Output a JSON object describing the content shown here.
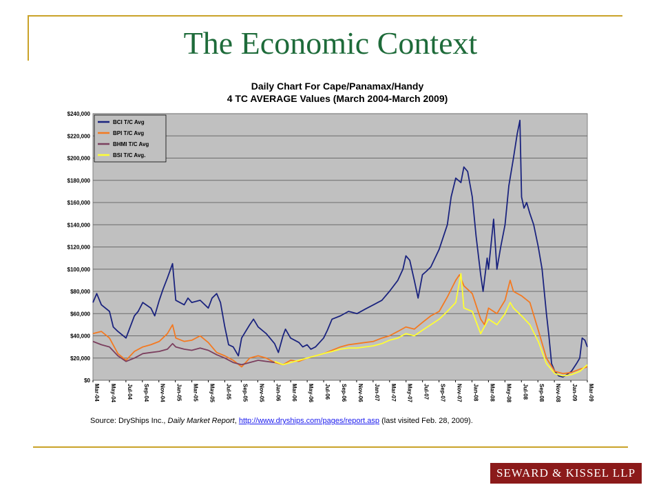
{
  "slide": {
    "title": "The Economic Context",
    "source_prefix": "Source: DryShips Inc., ",
    "source_italic": "Daily Market Report",
    "source_sep": ", ",
    "source_link": "http://www.dryships.com/pages/report.asp",
    "source_suffix": " (last visited Feb. 28, 2009).",
    "logo_text": "SEWARD & KISSEL LLP",
    "colors": {
      "title": "#1e6b3a",
      "rule": "#c9a227",
      "logo_bg": "#8b1a1a"
    }
  },
  "chart_data": {
    "type": "line",
    "title": "Daily Chart For Cape/Panamax/Handy",
    "subtitle": "4 TC AVERAGE Values (March 2004-March 2009)",
    "xlabel": "",
    "ylabel": "",
    "ylim": [
      0,
      240000
    ],
    "yticks": [
      {
        "value": 0,
        "label": "$0"
      },
      {
        "value": 20000,
        "label": "$20,000"
      },
      {
        "value": 40000,
        "label": "$40,000"
      },
      {
        "value": 60000,
        "label": "$60,000"
      },
      {
        "value": 80000,
        "label": "$80,000"
      },
      {
        "value": 100000,
        "label": "$100,000"
      },
      {
        "value": 120000,
        "label": "$120,000"
      },
      {
        "value": 140000,
        "label": "$140,000"
      },
      {
        "value": 160000,
        "label": "$160,000"
      },
      {
        "value": 180000,
        "label": "$180,000"
      },
      {
        "value": 200000,
        "label": "$200,000"
      },
      {
        "value": 220000,
        "label": "$220,000"
      },
      {
        "value": 240000,
        "label": "$240,000"
      }
    ],
    "xlim": [
      "2004-03",
      "2009-03"
    ],
    "xticks": [
      "Mar-04",
      "May-04",
      "Jul-04",
      "Sep-04",
      "Nov-04",
      "Jan-05",
      "Mar-05",
      "May-05",
      "Jul-05",
      "Sep-05",
      "Nov-05",
      "Jan-06",
      "Mar-06",
      "May-06",
      "Jul-06",
      "Sep-06",
      "Nov-06",
      "Jan-07",
      "Mar-07",
      "May-07",
      "Jul-07",
      "Sep-07",
      "Nov-07",
      "Jan-08",
      "Mar-08",
      "May-08",
      "Jul-08",
      "Sep-08",
      "Nov-08",
      "Jan-09",
      "Mar-09"
    ],
    "grid": true,
    "legend_position": "top-left",
    "background": "#c0c0c0",
    "series": [
      {
        "name": "BCI T/C Avg",
        "color": "#1a237e",
        "points": [
          [
            "2004-03",
            70000
          ],
          [
            "2004-03-15",
            78000
          ],
          [
            "2004-04",
            68000
          ],
          [
            "2004-05",
            62000
          ],
          [
            "2004-05-15",
            48000
          ],
          [
            "2004-06",
            44000
          ],
          [
            "2004-07",
            38000
          ],
          [
            "2004-08",
            58000
          ],
          [
            "2004-08-15",
            62000
          ],
          [
            "2004-09",
            70000
          ],
          [
            "2004-10",
            65000
          ],
          [
            "2004-10-15",
            58000
          ],
          [
            "2004-11",
            72000
          ],
          [
            "2004-11-15",
            82000
          ],
          [
            "2004-12",
            92000
          ],
          [
            "2004-12-20",
            105000
          ],
          [
            "2005-01",
            72000
          ],
          [
            "2005-02",
            68000
          ],
          [
            "2005-02-15",
            74000
          ],
          [
            "2005-03",
            70000
          ],
          [
            "2005-04",
            72000
          ],
          [
            "2005-05",
            65000
          ],
          [
            "2005-05-15",
            74000
          ],
          [
            "2005-06",
            78000
          ],
          [
            "2005-06-15",
            70000
          ],
          [
            "2005-07",
            48000
          ],
          [
            "2005-07-15",
            32000
          ],
          [
            "2005-08",
            30000
          ],
          [
            "2005-08-20",
            22000
          ],
          [
            "2005-09",
            38000
          ],
          [
            "2005-10",
            50000
          ],
          [
            "2005-10-15",
            55000
          ],
          [
            "2005-11",
            48000
          ],
          [
            "2005-12",
            42000
          ],
          [
            "2006-01",
            33000
          ],
          [
            "2006-01-15",
            25000
          ],
          [
            "2006-02",
            40000
          ],
          [
            "2006-02-10",
            46000
          ],
          [
            "2006-03",
            38000
          ],
          [
            "2006-04",
            34000
          ],
          [
            "2006-04-15",
            30000
          ],
          [
            "2006-05",
            32000
          ],
          [
            "2006-05-15",
            28000
          ],
          [
            "2006-06",
            30000
          ],
          [
            "2006-07",
            38000
          ],
          [
            "2006-07-15",
            45000
          ],
          [
            "2006-08",
            55000
          ],
          [
            "2006-09",
            58000
          ],
          [
            "2006-10",
            62000
          ],
          [
            "2006-11",
            60000
          ],
          [
            "2006-12",
            64000
          ],
          [
            "2007-01",
            68000
          ],
          [
            "2007-02",
            72000
          ],
          [
            "2007-03",
            80000
          ],
          [
            "2007-04",
            90000
          ],
          [
            "2007-04-20",
            100000
          ],
          [
            "2007-05",
            112000
          ],
          [
            "2007-05-15",
            108000
          ],
          [
            "2007-06",
            90000
          ],
          [
            "2007-06-15",
            74000
          ],
          [
            "2007-07",
            95000
          ],
          [
            "2007-07-15",
            98000
          ],
          [
            "2007-08",
            102000
          ],
          [
            "2007-09",
            118000
          ],
          [
            "2007-10",
            140000
          ],
          [
            "2007-10-15",
            165000
          ],
          [
            "2007-11",
            182000
          ],
          [
            "2007-11-20",
            178000
          ],
          [
            "2007-12",
            192000
          ],
          [
            "2007-12-15",
            188000
          ],
          [
            "2008-01",
            165000
          ],
          [
            "2008-01-15",
            130000
          ],
          [
            "2008-02",
            95000
          ],
          [
            "2008-02-10",
            80000
          ],
          [
            "2008-02-25",
            110000
          ],
          [
            "2008-03",
            100000
          ],
          [
            "2008-03-20",
            145000
          ],
          [
            "2008-04",
            100000
          ],
          [
            "2008-04-15",
            120000
          ],
          [
            "2008-05",
            140000
          ],
          [
            "2008-05-15",
            175000
          ],
          [
            "2008-06",
            200000
          ],
          [
            "2008-06-15",
            222000
          ],
          [
            "2008-06-25",
            234000
          ],
          [
            "2008-07",
            165000
          ],
          [
            "2008-07-10",
            155000
          ],
          [
            "2008-07-20",
            160000
          ],
          [
            "2008-08",
            150000
          ],
          [
            "2008-08-15",
            140000
          ],
          [
            "2008-09",
            120000
          ],
          [
            "2008-09-15",
            100000
          ],
          [
            "2008-10",
            60000
          ],
          [
            "2008-10-10",
            40000
          ],
          [
            "2008-10-20",
            15000
          ],
          [
            "2008-11",
            8000
          ],
          [
            "2008-11-15",
            4000
          ],
          [
            "2008-12",
            3000
          ],
          [
            "2008-12-15",
            5000
          ],
          [
            "2009-01",
            8000
          ],
          [
            "2009-01-20",
            15000
          ],
          [
            "2009-02",
            20000
          ],
          [
            "2009-02-10",
            38000
          ],
          [
            "2009-02-20",
            36000
          ],
          [
            "2009-03",
            30000
          ]
        ]
      },
      {
        "name": "BPI T/C Avg",
        "color": "#f47920",
        "points": [
          [
            "2004-03",
            42000
          ],
          [
            "2004-04",
            44000
          ],
          [
            "2004-05",
            38000
          ],
          [
            "2004-06",
            24000
          ],
          [
            "2004-07",
            18000
          ],
          [
            "2004-08",
            26000
          ],
          [
            "2004-09",
            30000
          ],
          [
            "2004-10",
            32000
          ],
          [
            "2004-11",
            35000
          ],
          [
            "2004-12",
            42000
          ],
          [
            "2004-12-20",
            50000
          ],
          [
            "2005-01",
            38000
          ],
          [
            "2005-02",
            35000
          ],
          [
            "2005-03",
            36000
          ],
          [
            "2005-04",
            40000
          ],
          [
            "2005-05",
            34000
          ],
          [
            "2005-06",
            25000
          ],
          [
            "2005-07",
            22000
          ],
          [
            "2005-08",
            18000
          ],
          [
            "2005-09",
            12000
          ],
          [
            "2005-10",
            20000
          ],
          [
            "2005-11",
            22000
          ],
          [
            "2005-12",
            20000
          ],
          [
            "2006-01",
            16000
          ],
          [
            "2006-02",
            14000
          ],
          [
            "2006-03",
            18000
          ],
          [
            "2006-04",
            17000
          ],
          [
            "2006-05",
            20000
          ],
          [
            "2006-06",
            22000
          ],
          [
            "2006-07",
            24000
          ],
          [
            "2006-08",
            27000
          ],
          [
            "2006-09",
            30000
          ],
          [
            "2006-10",
            32000
          ],
          [
            "2006-11",
            33000
          ],
          [
            "2006-12",
            34000
          ],
          [
            "2007-01",
            35000
          ],
          [
            "2007-02",
            38000
          ],
          [
            "2007-03",
            40000
          ],
          [
            "2007-04",
            44000
          ],
          [
            "2007-05",
            48000
          ],
          [
            "2007-06",
            46000
          ],
          [
            "2007-07",
            52000
          ],
          [
            "2007-08",
            58000
          ],
          [
            "2007-09",
            62000
          ],
          [
            "2007-10",
            75000
          ],
          [
            "2007-11",
            90000
          ],
          [
            "2007-11-15",
            95000
          ],
          [
            "2007-12",
            85000
          ],
          [
            "2008-01",
            78000
          ],
          [
            "2008-02",
            55000
          ],
          [
            "2008-02-15",
            50000
          ],
          [
            "2008-03",
            65000
          ],
          [
            "2008-04",
            60000
          ],
          [
            "2008-05",
            72000
          ],
          [
            "2008-05-20",
            90000
          ],
          [
            "2008-06",
            80000
          ],
          [
            "2008-07",
            76000
          ],
          [
            "2008-08",
            70000
          ],
          [
            "2008-09",
            45000
          ],
          [
            "2008-10",
            20000
          ],
          [
            "2008-11",
            8000
          ],
          [
            "2008-12",
            6000
          ],
          [
            "2009-01",
            7000
          ],
          [
            "2009-02",
            10000
          ],
          [
            "2009-03",
            12000
          ]
        ]
      },
      {
        "name": "BHMI T/C Avg",
        "color": "#7b3f5e",
        "points": [
          [
            "2004-03",
            35000
          ],
          [
            "2004-04",
            32000
          ],
          [
            "2004-05",
            30000
          ],
          [
            "2004-06",
            22000
          ],
          [
            "2004-07",
            17000
          ],
          [
            "2004-08",
            20000
          ],
          [
            "2004-09",
            24000
          ],
          [
            "2004-10",
            25000
          ],
          [
            "2004-11",
            26000
          ],
          [
            "2004-12",
            28000
          ],
          [
            "2004-12-20",
            33000
          ],
          [
            "2005-01",
            30000
          ],
          [
            "2005-02",
            28000
          ],
          [
            "2005-03",
            27000
          ],
          [
            "2005-04",
            29000
          ],
          [
            "2005-05",
            27000
          ],
          [
            "2005-06",
            23000
          ],
          [
            "2005-07",
            20000
          ],
          [
            "2005-08",
            16000
          ],
          [
            "2005-09",
            14000
          ],
          [
            "2005-10",
            16000
          ],
          [
            "2005-11",
            18000
          ],
          [
            "2005-12",
            17000
          ],
          [
            "2006-01",
            16000
          ]
        ]
      },
      {
        "name": "BSI T/C Avg.",
        "color": "#ffff33",
        "points": [
          [
            "2006-01",
            17000
          ],
          [
            "2006-02",
            14000
          ],
          [
            "2006-03",
            16000
          ],
          [
            "2006-04",
            18000
          ],
          [
            "2006-05",
            20000
          ],
          [
            "2006-06",
            22000
          ],
          [
            "2006-07",
            24000
          ],
          [
            "2006-08",
            26000
          ],
          [
            "2006-09",
            28000
          ],
          [
            "2006-10",
            29000
          ],
          [
            "2006-11",
            29000
          ],
          [
            "2006-12",
            30000
          ],
          [
            "2007-01",
            31000
          ],
          [
            "2007-02",
            33000
          ],
          [
            "2007-03",
            36000
          ],
          [
            "2007-04",
            38000
          ],
          [
            "2007-05",
            42000
          ],
          [
            "2007-06",
            40000
          ],
          [
            "2007-07",
            45000
          ],
          [
            "2007-08",
            50000
          ],
          [
            "2007-09",
            55000
          ],
          [
            "2007-10",
            62000
          ],
          [
            "2007-11",
            70000
          ],
          [
            "2007-11-20",
            96000
          ],
          [
            "2007-12",
            65000
          ],
          [
            "2008-01",
            62000
          ],
          [
            "2008-02",
            42000
          ],
          [
            "2008-03",
            55000
          ],
          [
            "2008-04",
            50000
          ],
          [
            "2008-05",
            60000
          ],
          [
            "2008-05-20",
            70000
          ],
          [
            "2008-06",
            65000
          ],
          [
            "2008-07",
            58000
          ],
          [
            "2008-08",
            50000
          ],
          [
            "2008-09",
            35000
          ],
          [
            "2008-10",
            15000
          ],
          [
            "2008-11",
            6000
          ],
          [
            "2008-12",
            4000
          ],
          [
            "2009-01",
            5000
          ],
          [
            "2009-02",
            8000
          ],
          [
            "2009-03",
            14000
          ]
        ]
      }
    ]
  }
}
